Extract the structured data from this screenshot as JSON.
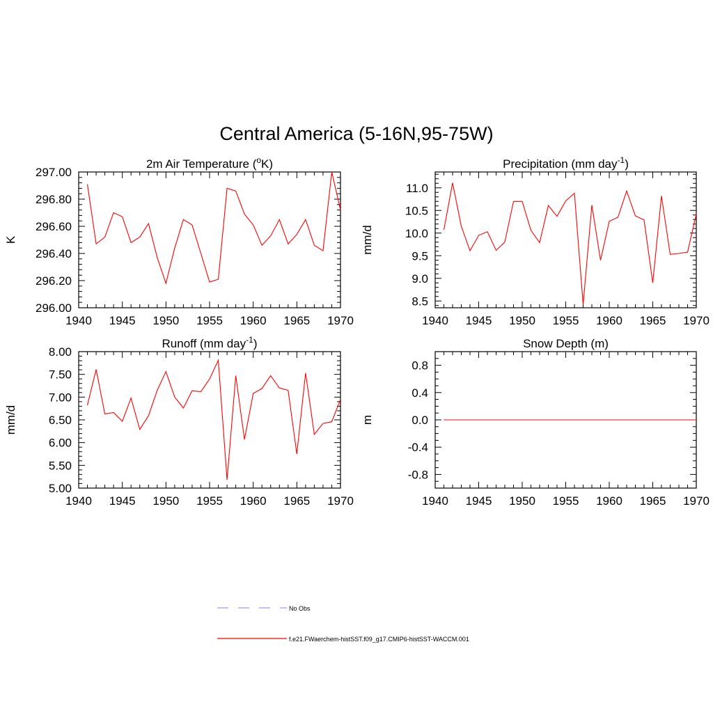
{
  "figure": {
    "title": "Central America (5-16N,95-75W)"
  },
  "colors": {
    "model_line": "#ff0000",
    "obs_line": "#9999ff",
    "axis": "#000000",
    "background": "#ffffff"
  },
  "legend": {
    "placement": "bottom-center",
    "entries": [
      {
        "label": "No Obs",
        "style": "dashed",
        "color": "#9999ff"
      },
      {
        "label": "f.e21.FWaerchem-histSST.f09_g17.CMIP6-histSST-WACCM.001",
        "style": "solid",
        "color": "#ff0000"
      }
    ]
  },
  "chart_data": [
    {
      "type": "line",
      "title": "2m Air Temperature (oK)",
      "title_parts": {
        "pre": "2m Air Temperature (",
        "sup": "o",
        "post": "K)"
      },
      "xlabel": "",
      "ylabel": "K",
      "xlim": [
        1940,
        1970
      ],
      "ylim": [
        296.0,
        297.0
      ],
      "x_ticks": [
        1940,
        1945,
        1950,
        1955,
        1960,
        1965,
        1970
      ],
      "x_tick_labels": [
        "1940",
        "1945",
        "1950",
        "1955",
        "1960",
        "1965",
        "1970"
      ],
      "y_ticks": [
        296.0,
        296.2,
        296.4,
        296.6,
        296.8,
        297.0
      ],
      "y_tick_labels": [
        "296.00",
        "296.20",
        "296.40",
        "296.60",
        "296.80",
        "297.00"
      ],
      "y_minor_step": 0.04,
      "grid": false,
      "series": [
        {
          "color": "#ff0000",
          "x": [
            1941,
            1942,
            1943,
            1944,
            1945,
            1946,
            1947,
            1948,
            1949,
            1950,
            1951,
            1952,
            1953,
            1954,
            1955,
            1956,
            1957,
            1958,
            1959,
            1960,
            1961,
            1962,
            1963,
            1964,
            1965,
            1966,
            1967,
            1968,
            1969,
            1970
          ],
          "values": [
            296.91,
            296.47,
            296.52,
            296.7,
            296.67,
            296.48,
            296.52,
            296.62,
            296.37,
            296.18,
            296.44,
            296.65,
            296.61,
            296.4,
            296.19,
            296.21,
            296.88,
            296.86,
            296.69,
            296.61,
            296.46,
            296.53,
            296.65,
            296.47,
            296.54,
            296.65,
            296.46,
            296.42,
            297.0,
            296.72
          ]
        }
      ]
    },
    {
      "type": "line",
      "title": "Precipitation (mm day-1)",
      "title_parts": {
        "pre": "Precipitation (mm day",
        "sup": "-1",
        "post": ")"
      },
      "xlabel": "",
      "ylabel": "mm/d",
      "xlim": [
        1940,
        1970
      ],
      "ylim": [
        8.35,
        11.35
      ],
      "x_ticks": [
        1940,
        1945,
        1950,
        1955,
        1960,
        1965,
        1970
      ],
      "x_tick_labels": [
        "1940",
        "1945",
        "1950",
        "1955",
        "1960",
        "1965",
        "1970"
      ],
      "y_ticks": [
        8.5,
        9.0,
        9.5,
        10.0,
        10.5,
        11.0
      ],
      "y_tick_labels": [
        "8.5",
        "9.0",
        "9.5",
        "10.0",
        "10.5",
        "11.0"
      ],
      "y_minor_step": 0.1,
      "grid": false,
      "series": [
        {
          "color": "#ff0000",
          "x": [
            1941,
            1942,
            1943,
            1944,
            1945,
            1946,
            1947,
            1948,
            1949,
            1950,
            1951,
            1952,
            1953,
            1954,
            1955,
            1956,
            1957,
            1958,
            1959,
            1960,
            1961,
            1962,
            1963,
            1964,
            1965,
            1966,
            1967,
            1968,
            1969,
            1970
          ],
          "values": [
            10.07,
            11.11,
            10.15,
            9.61,
            9.95,
            10.03,
            9.62,
            9.8,
            10.7,
            10.7,
            10.06,
            9.79,
            10.61,
            10.37,
            10.71,
            10.88,
            8.42,
            10.62,
            9.4,
            10.26,
            10.35,
            10.93,
            10.38,
            10.29,
            8.9,
            10.82,
            9.53,
            9.55,
            9.58,
            10.42
          ]
        }
      ]
    },
    {
      "type": "line",
      "title": "Runoff (mm day-1)",
      "title_parts": {
        "pre": "Runoff (mm day",
        "sup": "-1",
        "post": ")"
      },
      "xlabel": "",
      "ylabel": "mm/d",
      "xlim": [
        1940,
        1970
      ],
      "ylim": [
        5.0,
        8.0
      ],
      "x_ticks": [
        1940,
        1945,
        1950,
        1955,
        1960,
        1965,
        1970
      ],
      "x_tick_labels": [
        "1940",
        "1945",
        "1950",
        "1955",
        "1960",
        "1965",
        "1970"
      ],
      "y_ticks": [
        5.0,
        5.5,
        6.0,
        6.5,
        7.0,
        7.5,
        8.0
      ],
      "y_tick_labels": [
        "5.00",
        "5.50",
        "6.00",
        "6.50",
        "7.00",
        "7.50",
        "8.00"
      ],
      "y_minor_step": 0.1,
      "grid": false,
      "series": [
        {
          "color": "#ff0000",
          "x": [
            1941,
            1942,
            1943,
            1944,
            1945,
            1946,
            1947,
            1948,
            1949,
            1950,
            1951,
            1952,
            1953,
            1954,
            1955,
            1956,
            1957,
            1958,
            1959,
            1960,
            1961,
            1962,
            1963,
            1964,
            1965,
            1966,
            1967,
            1968,
            1969,
            1970
          ],
          "values": [
            6.82,
            7.61,
            6.63,
            6.66,
            6.47,
            6.98,
            6.29,
            6.59,
            7.15,
            7.56,
            7.0,
            6.76,
            7.14,
            7.12,
            7.4,
            7.81,
            5.18,
            7.47,
            6.07,
            7.08,
            7.19,
            7.47,
            7.2,
            7.15,
            5.75,
            7.53,
            6.18,
            6.42,
            6.46,
            6.95
          ]
        }
      ]
    },
    {
      "type": "line",
      "title": "Snow Depth (m)",
      "title_parts": {
        "pre": "Snow Depth (m)",
        "sup": "",
        "post": ""
      },
      "xlabel": "",
      "ylabel": "m",
      "xlim": [
        1940,
        1970
      ],
      "ylim": [
        -1.0,
        1.0
      ],
      "x_ticks": [
        1940,
        1945,
        1950,
        1955,
        1960,
        1965,
        1970
      ],
      "x_tick_labels": [
        "1940",
        "1945",
        "1950",
        "1955",
        "1960",
        "1965",
        "1970"
      ],
      "y_ticks": [
        -0.8,
        -0.4,
        0.0,
        0.4,
        0.8
      ],
      "y_tick_labels": [
        "-0.8",
        "-0.4",
        "0.0",
        "0.4",
        "0.8"
      ],
      "y_minor_step": 0.1,
      "grid": false,
      "series": [
        {
          "color": "#ff0000",
          "x": [
            1941,
            1942,
            1943,
            1944,
            1945,
            1946,
            1947,
            1948,
            1949,
            1950,
            1951,
            1952,
            1953,
            1954,
            1955,
            1956,
            1957,
            1958,
            1959,
            1960,
            1961,
            1962,
            1963,
            1964,
            1965,
            1966,
            1967,
            1968,
            1969,
            1970
          ],
          "values": [
            0,
            0,
            0,
            0,
            0,
            0,
            0,
            0,
            0,
            0,
            0,
            0,
            0,
            0,
            0,
            0,
            0,
            0,
            0,
            0,
            0,
            0,
            0,
            0,
            0,
            0,
            0,
            0,
            0,
            0
          ]
        }
      ]
    }
  ]
}
